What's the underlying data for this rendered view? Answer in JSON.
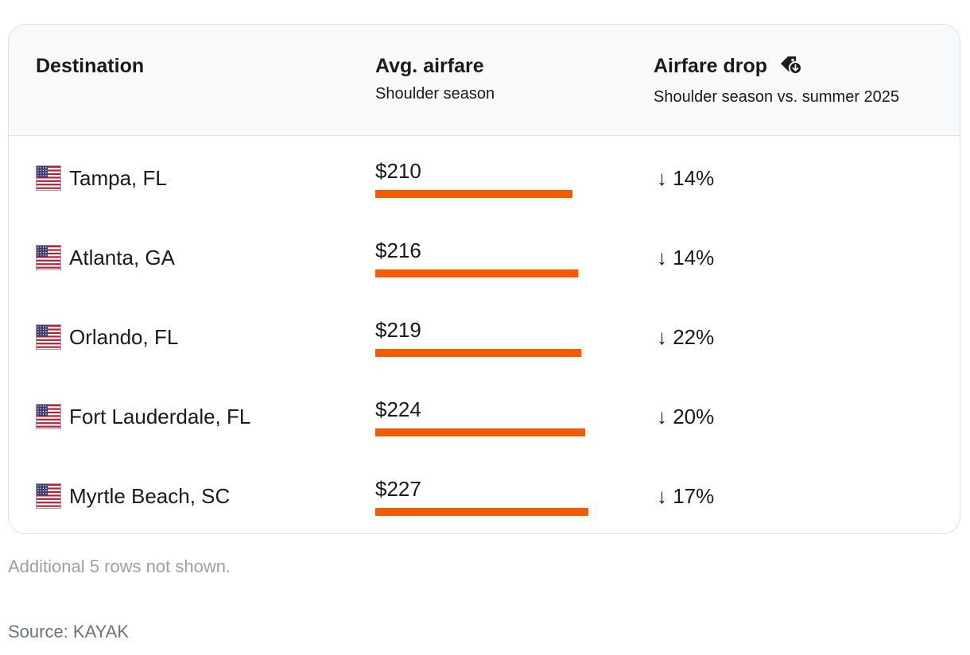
{
  "header": {
    "destination": "Destination",
    "airfare_title": "Avg. airfare",
    "airfare_sub": "Shoulder season",
    "drop_title": "Airfare drop",
    "drop_sub": "Shoulder season vs. summer 2025",
    "drop_icon": "price-tag-down-icon"
  },
  "chart_data": {
    "type": "table",
    "columns": [
      "Destination",
      "Avg. airfare",
      "Airfare drop"
    ],
    "bar_color": "#f55a00",
    "bar_scale_max": 227,
    "rows": [
      {
        "destination": "Tampa, FL",
        "flag_icon": "us-flag-icon",
        "airfare_label": "$210",
        "airfare": 210,
        "drop_label": "↓ 14%",
        "drop": 14
      },
      {
        "destination": "Atlanta, GA",
        "flag_icon": "us-flag-icon",
        "airfare_label": "$216",
        "airfare": 216,
        "drop_label": "↓ 14%",
        "drop": 14
      },
      {
        "destination": "Orlando, FL",
        "flag_icon": "us-flag-icon",
        "airfare_label": "$219",
        "airfare": 219,
        "drop_label": "↓ 22%",
        "drop": 22
      },
      {
        "destination": "Fort Lauderdale, FL",
        "flag_icon": "us-flag-icon",
        "airfare_label": "$224",
        "airfare": 224,
        "drop_label": "↓ 20%",
        "drop": 20
      },
      {
        "destination": "Myrtle Beach, SC",
        "flag_icon": "us-flag-icon",
        "airfare_label": "$227",
        "airfare": 227,
        "drop_label": "↓ 17%",
        "drop": 17
      }
    ]
  },
  "footer": {
    "note": "Additional 5 rows not shown.",
    "source": "Source: KAYAK"
  }
}
